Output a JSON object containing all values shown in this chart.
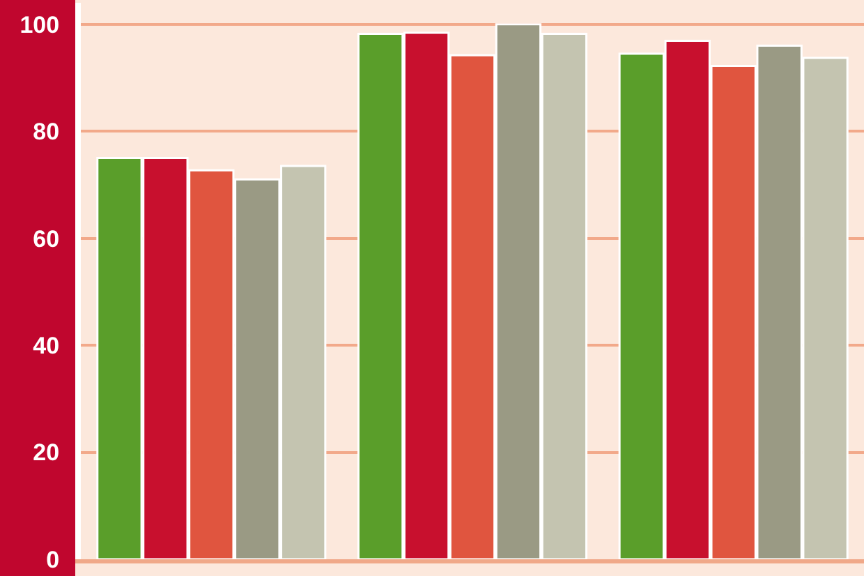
{
  "chart_data": {
    "type": "bar",
    "categories": [
      null,
      null,
      null
    ],
    "series": [
      {
        "color": "#5a9e2a",
        "values": [
          75,
          98.2,
          94.5
        ]
      },
      {
        "color": "#c8102e",
        "values": [
          75,
          98.4,
          96.9
        ]
      },
      {
        "color": "#e0553f",
        "values": [
          72.7,
          94.2,
          92.2
        ]
      },
      {
        "color": "#9a9a84",
        "values": [
          71,
          100,
          96
        ]
      },
      {
        "color": "#c4c4b0",
        "values": [
          73.5,
          98.2,
          93.7
        ]
      }
    ],
    "ylim": [
      0,
      104
    ],
    "yticks": [
      0,
      20,
      40,
      60,
      80,
      100
    ],
    "grid": "y",
    "tick_labels": "y"
  }
}
